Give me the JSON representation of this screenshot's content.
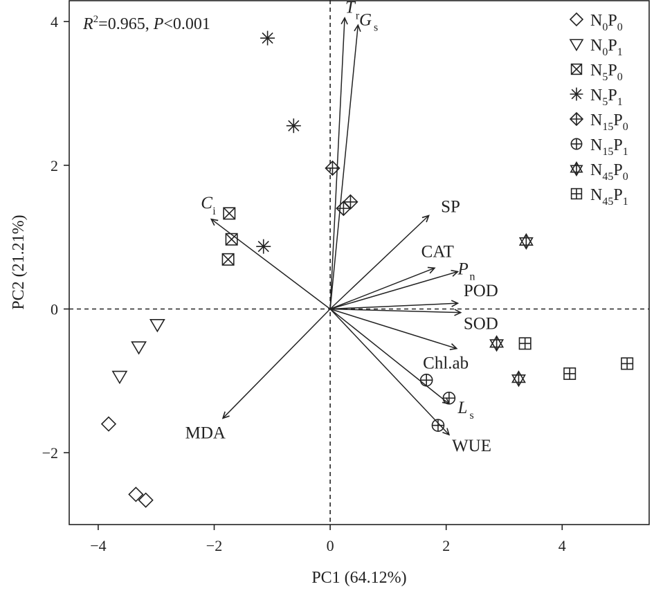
{
  "chart_data": {
    "type": "scatter",
    "subtype": "pca-biplot",
    "stats": {
      "r2_label": "R",
      "r2_sup": "2",
      "r2_value": "=0.965, ",
      "p_label": "P",
      "p_value": "<0.001"
    },
    "xlabel": "PC1 (64.12%)",
    "ylabel": "PC2 (21.21%)",
    "xlim": [
      -4.5,
      5.5
    ],
    "ylim": [
      -3.0,
      4.3
    ],
    "xticks": [
      -4,
      -2,
      0,
      2,
      4
    ],
    "yticks": [
      -2,
      0,
      2,
      4
    ],
    "xtick_labels": [
      "−4",
      "−2",
      "0",
      "2",
      "4"
    ],
    "ytick_labels": [
      "−2",
      "0",
      "2",
      "4"
    ],
    "zero_lines": true,
    "legend_position": "top-right",
    "colors": {
      "ink": "#222222",
      "background": "#ffffff"
    },
    "series": [
      {
        "name": "N0P0",
        "label": {
          "base": "N",
          "sub1": "0",
          "mid": "P",
          "sub2": "0"
        },
        "marker": "diamond",
        "points": [
          [
            -3.82,
            -1.6
          ],
          [
            -3.35,
            -2.58
          ],
          [
            -3.18,
            -2.66
          ]
        ]
      },
      {
        "name": "N0P1",
        "label": {
          "base": "N",
          "sub1": "0",
          "mid": "P",
          "sub2": "1"
        },
        "marker": "triangle-down",
        "points": [
          [
            -2.98,
            -0.22
          ],
          [
            -3.3,
            -0.53
          ],
          [
            -3.63,
            -0.94
          ]
        ]
      },
      {
        "name": "N5P0",
        "label": {
          "base": "N",
          "sub1": "5",
          "mid": "P",
          "sub2": "0"
        },
        "marker": "square-x",
        "points": [
          [
            -1.74,
            1.33
          ],
          [
            -1.7,
            0.97
          ],
          [
            -1.76,
            0.69
          ]
        ]
      },
      {
        "name": "N5P1",
        "label": {
          "base": "N",
          "sub1": "5",
          "mid": "P",
          "sub2": "1"
        },
        "marker": "asterisk",
        "points": [
          [
            -1.08,
            3.77
          ],
          [
            -0.63,
            2.55
          ],
          [
            -1.15,
            0.87
          ]
        ]
      },
      {
        "name": "N15P0",
        "label": {
          "base": "N",
          "sub1": "15",
          "mid": "P",
          "sub2": "0"
        },
        "marker": "diamond-plus",
        "points": [
          [
            0.04,
            1.96
          ],
          [
            0.23,
            1.4
          ],
          [
            0.35,
            1.49
          ]
        ]
      },
      {
        "name": "N15P1",
        "label": {
          "base": "N",
          "sub1": "15",
          "mid": "P",
          "sub2": "1"
        },
        "marker": "circle-plus",
        "points": [
          [
            1.66,
            -0.99
          ],
          [
            2.05,
            -1.24
          ],
          [
            1.86,
            -1.62
          ]
        ]
      },
      {
        "name": "N45P0",
        "label": {
          "base": "N",
          "sub1": "45",
          "mid": "P",
          "sub2": "0"
        },
        "marker": "star-of-david",
        "points": [
          [
            3.38,
            0.94
          ],
          [
            2.87,
            -0.48
          ],
          [
            3.25,
            -0.97
          ]
        ]
      },
      {
        "name": "N45P1",
        "label": {
          "base": "N",
          "sub1": "45",
          "mid": "P",
          "sub2": "1"
        },
        "marker": "square-plus",
        "points": [
          [
            3.36,
            -0.48
          ],
          [
            4.13,
            -0.9
          ],
          [
            5.12,
            -0.76
          ]
        ]
      }
    ],
    "vectors": [
      {
        "name": "Tr",
        "main": "T",
        "sub": "r",
        "italic": true,
        "x": 0.25,
        "y": 4.05,
        "label_anchor": [
          0.26,
          4.12
        ],
        "sub_offset": [
          15,
          9
        ]
      },
      {
        "name": "Gs",
        "main": "G",
        "sub": "s",
        "italic": true,
        "x": 0.48,
        "y": 3.95,
        "label_anchor": [
          0.5,
          3.95
        ],
        "sub_offset": [
          21,
          8
        ]
      },
      {
        "name": "Ci",
        "main": "C",
        "sub": "i",
        "italic": true,
        "x": -2.05,
        "y": 1.25,
        "label_anchor": [
          -2.23,
          1.4
        ],
        "sub_offset": [
          17,
          9
        ]
      },
      {
        "name": "SP",
        "main": "SP",
        "sub": "",
        "italic": false,
        "x": 1.7,
        "y": 1.3,
        "label_anchor": [
          1.91,
          1.35
        ],
        "sub_offset": [
          0,
          0
        ]
      },
      {
        "name": "CAT",
        "main": "CAT",
        "sub": "",
        "italic": false,
        "x": 1.8,
        "y": 0.57,
        "label_anchor": [
          1.57,
          0.72
        ],
        "sub_offset": [
          0,
          0
        ]
      },
      {
        "name": "Pn",
        "main": "P",
        "sub": "n",
        "italic": true,
        "x": 2.2,
        "y": 0.52,
        "label_anchor": [
          2.2,
          0.48
        ],
        "sub_offset": [
          17,
          8
        ]
      },
      {
        "name": "POD",
        "main": "POD",
        "sub": "",
        "italic": false,
        "x": 2.2,
        "y": 0.08,
        "label_anchor": [
          2.3,
          0.18
        ],
        "sub_offset": [
          0,
          0
        ]
      },
      {
        "name": "SOD",
        "main": "SOD",
        "sub": "",
        "italic": false,
        "x": 2.25,
        "y": -0.05,
        "label_anchor": [
          2.3,
          -0.28
        ],
        "sub_offset": [
          0,
          0
        ]
      },
      {
        "name": "Chl.ab",
        "main": "Chl.ab",
        "sub": "",
        "italic": false,
        "x": 2.18,
        "y": -0.55,
        "label_anchor": [
          1.6,
          -0.83
        ],
        "sub_offset": [
          0,
          0
        ]
      },
      {
        "name": "Ls",
        "main": "L",
        "sub": "s",
        "italic": true,
        "x": 2.05,
        "y": -1.32,
        "label_anchor": [
          2.2,
          -1.45
        ],
        "sub_offset": [
          17,
          8
        ]
      },
      {
        "name": "WUE",
        "main": "WUE",
        "sub": "",
        "italic": false,
        "x": 2.05,
        "y": -1.75,
        "label_anchor": [
          2.1,
          -1.98
        ],
        "sub_offset": [
          0,
          0
        ]
      },
      {
        "name": "MDA",
        "main": "MDA",
        "sub": "",
        "italic": false,
        "x": -1.85,
        "y": -1.52,
        "label_anchor": [
          -2.5,
          -1.8
        ],
        "sub_offset": [
          0,
          0
        ]
      }
    ]
  }
}
